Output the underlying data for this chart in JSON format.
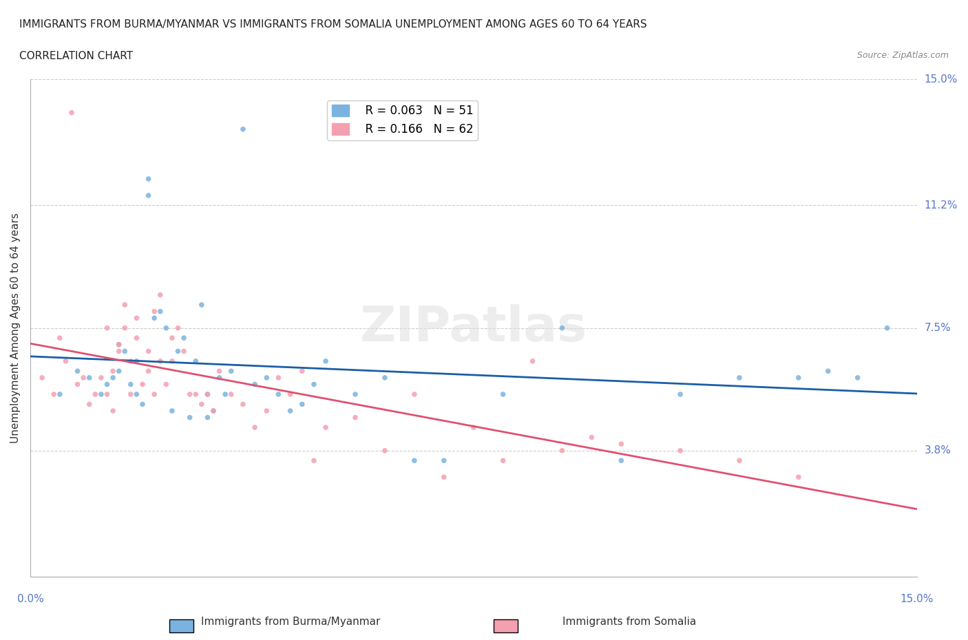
{
  "title_line1": "IMMIGRANTS FROM BURMA/MYANMAR VS IMMIGRANTS FROM SOMALIA UNEMPLOYMENT AMONG AGES 60 TO 64 YEARS",
  "title_line2": "CORRELATION CHART",
  "source_text": "Source: ZipAtlas.com",
  "ylabel": "Unemployment Among Ages 60 to 64 years",
  "xlim": [
    0.0,
    0.15
  ],
  "ylim": [
    0.0,
    0.15
  ],
  "ytick_labels": [
    "15.0%",
    "11.2%",
    "7.5%",
    "3.8%"
  ],
  "ytick_positions": [
    0.15,
    0.112,
    0.075,
    0.038
  ],
  "grid_color": "#cccccc",
  "background_color": "#ffffff",
  "watermark_text": "ZIPatlas",
  "legend_R1": "R = 0.063",
  "legend_N1": "N = 51",
  "legend_R2": "R = 0.166",
  "legend_N2": "N = 62",
  "color_burma": "#7ab3e0",
  "color_somalia": "#f4a0b0",
  "color_burma_line": "#1a5fa8",
  "color_somalia_line": "#e05070",
  "color_axis_labels": "#5577cc",
  "scatter_alpha": 0.85,
  "scatter_size": 30,
  "burma_x": [
    0.005,
    0.008,
    0.01,
    0.012,
    0.013,
    0.014,
    0.015,
    0.015,
    0.016,
    0.017,
    0.018,
    0.018,
    0.019,
    0.02,
    0.02,
    0.021,
    0.022,
    0.023,
    0.024,
    0.025,
    0.026,
    0.027,
    0.028,
    0.029,
    0.03,
    0.03,
    0.031,
    0.032,
    0.033,
    0.034,
    0.036,
    0.038,
    0.04,
    0.042,
    0.044,
    0.046,
    0.048,
    0.05,
    0.055,
    0.06,
    0.065,
    0.07,
    0.08,
    0.09,
    0.1,
    0.11,
    0.12,
    0.13,
    0.135,
    0.14,
    0.145
  ],
  "burma_y": [
    0.055,
    0.062,
    0.06,
    0.055,
    0.058,
    0.06,
    0.062,
    0.07,
    0.068,
    0.058,
    0.065,
    0.055,
    0.052,
    0.12,
    0.115,
    0.078,
    0.08,
    0.075,
    0.05,
    0.068,
    0.072,
    0.048,
    0.065,
    0.082,
    0.055,
    0.048,
    0.05,
    0.06,
    0.055,
    0.062,
    0.135,
    0.058,
    0.06,
    0.055,
    0.05,
    0.052,
    0.058,
    0.065,
    0.055,
    0.06,
    0.035,
    0.035,
    0.055,
    0.075,
    0.035,
    0.055,
    0.06,
    0.06,
    0.062,
    0.06,
    0.075
  ],
  "somalia_x": [
    0.002,
    0.004,
    0.005,
    0.006,
    0.007,
    0.008,
    0.009,
    0.01,
    0.011,
    0.012,
    0.013,
    0.013,
    0.014,
    0.014,
    0.015,
    0.015,
    0.016,
    0.016,
    0.017,
    0.017,
    0.018,
    0.018,
    0.019,
    0.02,
    0.02,
    0.021,
    0.021,
    0.022,
    0.022,
    0.023,
    0.024,
    0.024,
    0.025,
    0.026,
    0.027,
    0.028,
    0.029,
    0.03,
    0.031,
    0.032,
    0.034,
    0.036,
    0.038,
    0.04,
    0.042,
    0.044,
    0.046,
    0.048,
    0.05,
    0.055,
    0.06,
    0.065,
    0.07,
    0.075,
    0.08,
    0.085,
    0.09,
    0.095,
    0.1,
    0.11,
    0.12,
    0.13
  ],
  "somalia_y": [
    0.06,
    0.055,
    0.072,
    0.065,
    0.14,
    0.058,
    0.06,
    0.052,
    0.055,
    0.06,
    0.075,
    0.055,
    0.062,
    0.05,
    0.07,
    0.068,
    0.082,
    0.075,
    0.055,
    0.065,
    0.078,
    0.072,
    0.058,
    0.068,
    0.062,
    0.08,
    0.055,
    0.085,
    0.065,
    0.058,
    0.072,
    0.065,
    0.075,
    0.068,
    0.055,
    0.055,
    0.052,
    0.055,
    0.05,
    0.062,
    0.055,
    0.052,
    0.045,
    0.05,
    0.06,
    0.055,
    0.062,
    0.035,
    0.045,
    0.048,
    0.038,
    0.055,
    0.03,
    0.045,
    0.035,
    0.065,
    0.038,
    0.042,
    0.04,
    0.038,
    0.035,
    0.03
  ]
}
